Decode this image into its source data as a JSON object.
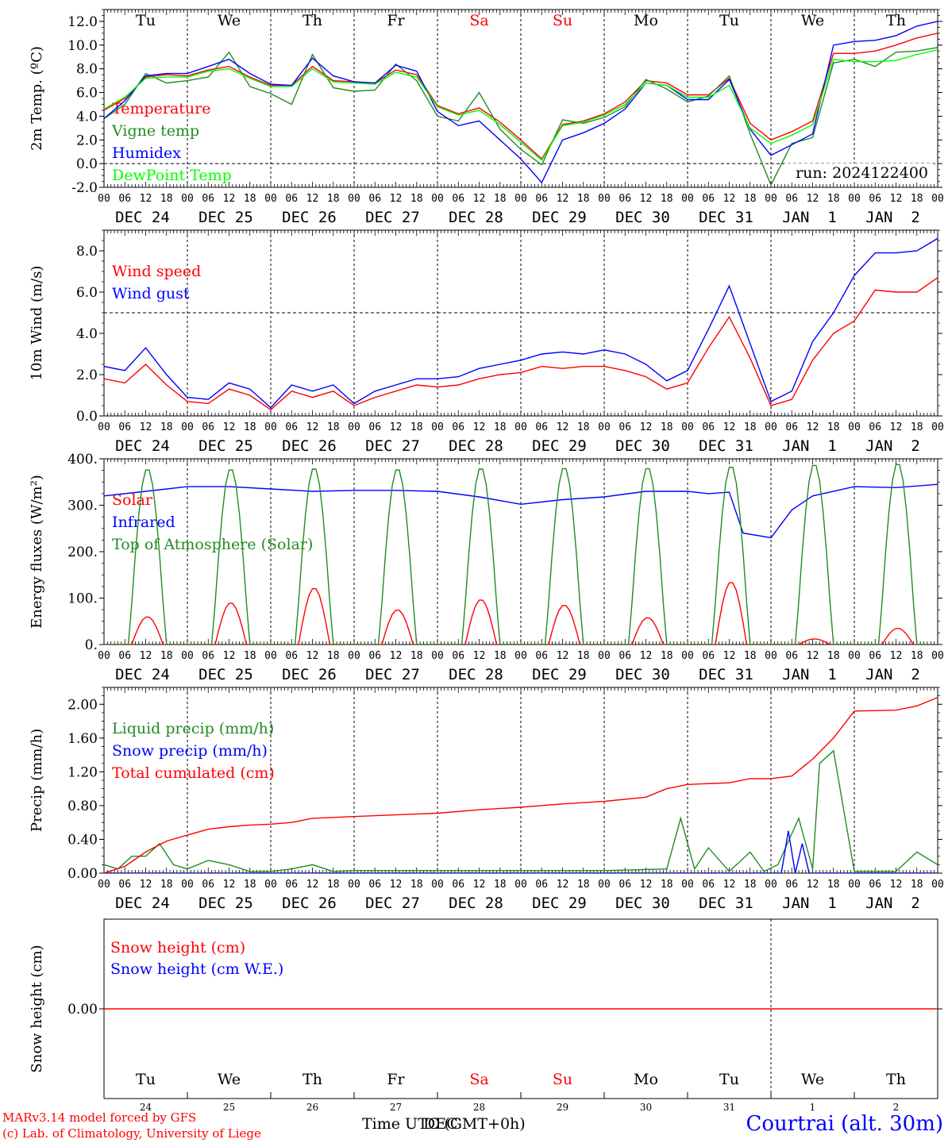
{
  "days": [
    {
      "name": "Tu",
      "date": "DEC 24",
      "num": "24",
      "color": "#000000"
    },
    {
      "name": "We",
      "date": "DEC 25",
      "num": "25",
      "color": "#000000"
    },
    {
      "name": "Th",
      "date": "DEC 26",
      "num": "26",
      "color": "#000000"
    },
    {
      "name": "Fr",
      "date": "DEC 27",
      "num": "27",
      "color": "#000000"
    },
    {
      "name": "Sa",
      "date": "DEC 28",
      "num": "28",
      "color": "#ff0000"
    },
    {
      "name": "Su",
      "date": "DEC 29",
      "num": "29",
      "color": "#ff0000"
    },
    {
      "name": "Mo",
      "date": "DEC 30",
      "num": "30",
      "color": "#000000"
    },
    {
      "name": "Tu",
      "date": "DEC 31",
      "num": "31",
      "color": "#000000"
    },
    {
      "name": "We",
      "date": "JAN  1",
      "num": "1",
      "color": "#000000"
    },
    {
      "name": "Th",
      "date": "JAN  2",
      "num": "2",
      "color": "#000000"
    }
  ],
  "hour_labels": [
    "00",
    "06",
    "12",
    "18"
  ],
  "hour_end_label": "00",
  "chart_data": [
    {
      "type": "line",
      "ylabel": "2m Temp. (ºC)",
      "ylim": [
        -2,
        13
      ],
      "yticks": [
        "-2.0",
        "0.0",
        "2.0",
        "4.0",
        "6.0",
        "8.0",
        "10.0",
        "12.0"
      ],
      "ytick_values": [
        -2,
        0,
        2,
        4,
        6,
        8,
        10,
        12
      ],
      "reference_line": 0,
      "run_label": "run: 2024122400",
      "series": [
        {
          "name": "Temperature",
          "color": "#ff0000",
          "x": [
            0,
            6,
            12,
            18,
            24,
            30,
            36,
            42,
            48,
            54,
            60,
            66,
            72,
            78,
            84,
            90,
            96,
            102,
            108,
            114,
            120,
            126,
            132,
            138,
            144,
            150,
            156,
            162,
            168,
            174,
            180,
            186,
            192,
            198,
            204,
            210,
            216,
            222,
            228,
            234,
            240
          ],
          "values": [
            4.5,
            5.5,
            7.3,
            7.5,
            7.4,
            7.9,
            8.2,
            7.3,
            6.6,
            6.6,
            8.2,
            7.0,
            6.9,
            6.8,
            7.9,
            7.5,
            4.9,
            4.2,
            4.7,
            3.5,
            2.0,
            0.4,
            3.3,
            3.6,
            4.2,
            5.2,
            7.0,
            6.8,
            5.8,
            5.8,
            7.2,
            3.4,
            2.0,
            2.7,
            3.6,
            9.3,
            9.3,
            9.5,
            10.0,
            10.6,
            11.0
          ]
        },
        {
          "name": "Vigne temp",
          "color": "#228b22",
          "x": [
            0,
            6,
            12,
            18,
            24,
            30,
            36,
            42,
            48,
            54,
            60,
            66,
            72,
            78,
            84,
            90,
            96,
            102,
            108,
            114,
            120,
            126,
            132,
            138,
            144,
            150,
            156,
            162,
            168,
            174,
            180,
            186,
            192,
            198,
            204,
            210,
            216,
            222,
            228,
            234,
            240
          ],
          "values": [
            3.8,
            5.0,
            7.6,
            6.8,
            7.0,
            7.3,
            9.4,
            6.5,
            5.9,
            5.0,
            9.2,
            6.4,
            6.1,
            6.2,
            8.4,
            7.0,
            4.0,
            3.6,
            6.0,
            2.9,
            1.2,
            -0.1,
            3.7,
            3.4,
            3.9,
            4.8,
            7.1,
            6.3,
            5.2,
            5.7,
            7.4,
            2.5,
            -1.8,
            1.7,
            2.2,
            8.5,
            8.8,
            8.2,
            9.4,
            9.5,
            9.8
          ]
        },
        {
          "name": "Humidex",
          "color": "#0000ff",
          "x": [
            0,
            6,
            12,
            18,
            24,
            30,
            36,
            42,
            48,
            54,
            60,
            66,
            72,
            78,
            84,
            90,
            96,
            102,
            108,
            114,
            120,
            126,
            132,
            138,
            144,
            150,
            156,
            162,
            168,
            174,
            180,
            186,
            192,
            198,
            204,
            210,
            216,
            222,
            228,
            234,
            240
          ],
          "values": [
            3.8,
            5.3,
            7.4,
            7.6,
            7.6,
            8.2,
            8.8,
            7.6,
            6.7,
            6.6,
            8.9,
            7.4,
            6.9,
            6.8,
            8.3,
            7.8,
            4.4,
            3.2,
            3.6,
            2.0,
            0.4,
            -1.6,
            2.0,
            2.6,
            3.4,
            4.6,
            6.8,
            6.6,
            5.4,
            5.4,
            7.1,
            2.9,
            0.7,
            1.6,
            2.5,
            10.0,
            10.3,
            10.4,
            10.8,
            11.6,
            12.0
          ]
        },
        {
          "name": "DewPoint Temp",
          "color": "#00ff00",
          "x": [
            0,
            6,
            12,
            18,
            24,
            30,
            36,
            42,
            48,
            54,
            60,
            66,
            72,
            78,
            84,
            90,
            96,
            102,
            108,
            114,
            120,
            126,
            132,
            138,
            144,
            150,
            156,
            162,
            168,
            174,
            180,
            186,
            192,
            198,
            204,
            210,
            216,
            222,
            228,
            234,
            240
          ],
          "values": [
            4.6,
            5.6,
            7.2,
            7.3,
            7.3,
            7.8,
            8.0,
            7.2,
            6.5,
            6.5,
            8.0,
            6.9,
            6.8,
            6.7,
            7.7,
            7.3,
            4.8,
            4.1,
            4.5,
            3.3,
            1.8,
            0.3,
            3.2,
            3.5,
            4.1,
            5.0,
            6.8,
            6.6,
            5.6,
            5.6,
            6.6,
            3.0,
            1.7,
            2.4,
            3.3,
            8.8,
            8.6,
            8.6,
            8.7,
            9.2,
            9.6
          ]
        }
      ]
    },
    {
      "type": "line",
      "ylabel": "10m Wind (m/s)",
      "ylim": [
        0,
        9
      ],
      "yticks": [
        "0.0",
        "2.0",
        "4.0",
        "6.0",
        "8.0"
      ],
      "ytick_values": [
        0,
        2,
        4,
        6,
        8
      ],
      "reference_line": 5,
      "series": [
        {
          "name": "Wind speed",
          "color": "#ff0000",
          "x": [
            0,
            6,
            12,
            18,
            24,
            30,
            36,
            42,
            48,
            54,
            60,
            66,
            72,
            78,
            84,
            90,
            96,
            102,
            108,
            114,
            120,
            126,
            132,
            138,
            144,
            150,
            156,
            162,
            168,
            174,
            180,
            186,
            192,
            198,
            204,
            210,
            216,
            222,
            228,
            234,
            240
          ],
          "values": [
            1.8,
            1.6,
            2.5,
            1.5,
            0.7,
            0.6,
            1.3,
            1.0,
            0.3,
            1.2,
            0.9,
            1.2,
            0.5,
            0.9,
            1.2,
            1.5,
            1.4,
            1.5,
            1.8,
            2.0,
            2.1,
            2.4,
            2.3,
            2.4,
            2.4,
            2.2,
            1.9,
            1.3,
            1.6,
            3.3,
            4.8,
            2.8,
            0.5,
            0.8,
            2.7,
            4.0,
            4.6,
            6.1,
            6.0,
            6.0,
            6.7
          ]
        },
        {
          "name": "Wind gust",
          "color": "#0000ff",
          "x": [
            0,
            6,
            12,
            18,
            24,
            30,
            36,
            42,
            48,
            54,
            60,
            66,
            72,
            78,
            84,
            90,
            96,
            102,
            108,
            114,
            120,
            126,
            132,
            138,
            144,
            150,
            156,
            162,
            168,
            174,
            180,
            186,
            192,
            198,
            204,
            210,
            216,
            222,
            228,
            234,
            240
          ],
          "values": [
            2.4,
            2.2,
            3.3,
            2.0,
            0.9,
            0.8,
            1.6,
            1.3,
            0.4,
            1.5,
            1.2,
            1.5,
            0.6,
            1.2,
            1.5,
            1.8,
            1.8,
            1.9,
            2.3,
            2.5,
            2.7,
            3.0,
            3.1,
            3.0,
            3.2,
            3.0,
            2.5,
            1.7,
            2.2,
            4.2,
            6.3,
            3.5,
            0.7,
            1.2,
            3.6,
            5.0,
            6.8,
            7.9,
            7.9,
            8.0,
            8.6
          ]
        }
      ]
    },
    {
      "type": "line",
      "ylabel": "Energy fluxes (W/m²)",
      "ylim": [
        0,
        400
      ],
      "yticks": [
        "0.",
        "100.",
        "200.",
        "300.",
        "400."
      ],
      "ytick_values": [
        0,
        100,
        200,
        300,
        400
      ],
      "series": [
        {
          "name": "Solar",
          "color": "#ff0000",
          "peaks": [
            60,
            90,
            122,
            75,
            97,
            85,
            58,
            135,
            12,
            35
          ],
          "peak_hour": 12.5,
          "half_width": 4.5
        },
        {
          "name": "Infrared",
          "color": "#0000ff",
          "x": [
            0,
            12,
            24,
            36,
            48,
            60,
            72,
            84,
            96,
            108,
            120,
            132,
            144,
            156,
            168,
            174,
            180,
            184,
            192,
            198,
            204,
            216,
            228,
            240
          ],
          "values": [
            320,
            330,
            340,
            340,
            335,
            330,
            332,
            332,
            330,
            318,
            302,
            312,
            318,
            330,
            330,
            325,
            328,
            240,
            230,
            290,
            320,
            340,
            338,
            345
          ]
        },
        {
          "name": "Top of Atmosphere (Solar)",
          "color": "#228b22",
          "peaks": [
            380,
            380,
            382,
            380,
            382,
            383,
            383,
            386,
            390,
            392
          ],
          "peak_hour": 12.5,
          "half_width": 5.3
        }
      ]
    },
    {
      "type": "line",
      "ylabel": "Precip (mm/h)",
      "ylim": [
        0,
        2.2
      ],
      "yticks": [
        "0.00",
        "0.40",
        "0.80",
        "1.20",
        "1.60",
        "2.00"
      ],
      "ytick_values": [
        0,
        0.4,
        0.8,
        1.2,
        1.6,
        2.0
      ],
      "series": [
        {
          "name": "Liquid precip (mm/h)",
          "color": "#228b22",
          "x": [
            0,
            4,
            8,
            12,
            16,
            20,
            24,
            30,
            36,
            42,
            48,
            54,
            60,
            66,
            72,
            96,
            120,
            144,
            162,
            166,
            170,
            174,
            180,
            186,
            190,
            194,
            200,
            204,
            206,
            210,
            216,
            228,
            234,
            240
          ],
          "values": [
            0.1,
            0.05,
            0.2,
            0.2,
            0.35,
            0.1,
            0.05,
            0.15,
            0.1,
            0.02,
            0.02,
            0.05,
            0.1,
            0.02,
            0.03,
            0.03,
            0.03,
            0.03,
            0.05,
            0.65,
            0.05,
            0.3,
            0.02,
            0.25,
            0.02,
            0.1,
            0.65,
            0.05,
            1.3,
            1.45,
            0.02,
            0.02,
            0.25,
            0.1
          ]
        },
        {
          "name": "Snow precip (mm/h)",
          "color": "#0000ff",
          "x": [
            0,
            195,
            197,
            199,
            201,
            203,
            205,
            240
          ],
          "values": [
            0,
            0,
            0.5,
            0,
            0.35,
            0,
            0,
            0
          ]
        },
        {
          "name": "Total cumulated (cm)",
          "color": "#ff0000",
          "x": [
            0,
            6,
            12,
            18,
            24,
            30,
            36,
            42,
            48,
            54,
            60,
            72,
            84,
            96,
            108,
            120,
            132,
            144,
            156,
            162,
            168,
            180,
            186,
            192,
            198,
            204,
            210,
            216,
            228,
            234,
            240
          ],
          "values": [
            0.0,
            0.08,
            0.25,
            0.38,
            0.45,
            0.52,
            0.55,
            0.57,
            0.58,
            0.6,
            0.65,
            0.67,
            0.69,
            0.71,
            0.75,
            0.78,
            0.82,
            0.85,
            0.9,
            1.0,
            1.05,
            1.07,
            1.12,
            1.12,
            1.15,
            1.35,
            1.6,
            1.92,
            1.93,
            1.98,
            2.08
          ]
        }
      ]
    },
    {
      "type": "line",
      "ylabel": "Snow height (cm)",
      "ylim": [
        -1,
        1
      ],
      "yticks": [
        "0.00"
      ],
      "ytick_values": [
        0
      ],
      "series": [
        {
          "name": "Snow height (cm)",
          "color": "#ff0000",
          "x": [
            0,
            240
          ],
          "values": [
            0,
            0
          ]
        },
        {
          "name": "Snow height (cm W.E.)",
          "color": "#0000ff",
          "x": [],
          "values": []
        }
      ]
    }
  ],
  "footer": {
    "credit_line1": "MARv3.14 model forced by GFS",
    "credit_line2": "(c) Lab. of Climatology, University of Liege",
    "xlabel": "Time UTC (GMT+0h)",
    "xlabel_overlay": "DEC",
    "location": "Courtrai (alt. 30m)"
  }
}
